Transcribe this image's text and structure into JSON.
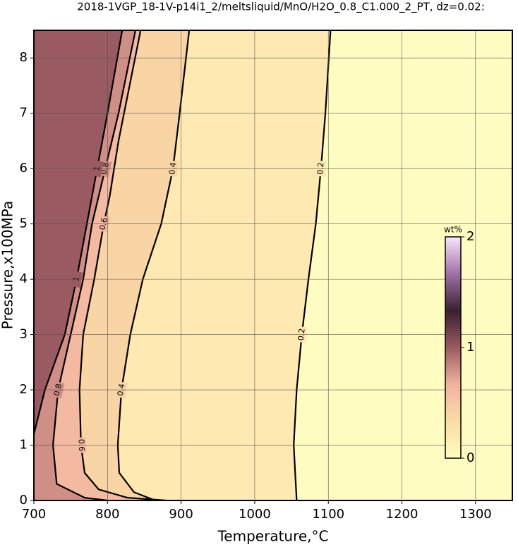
{
  "chart_data": {
    "type": "contour",
    "title": "2018-1VGP_18-1V-p14i1_2/meltsliquid/MnO/H2O_0.8_C1.000_2_PT, dz=0.02:",
    "x_label": "Temperature,°C",
    "y_label": "Pressure,x100MPa",
    "xlim": [
      700,
      1350
    ],
    "xticks": [
      700,
      800,
      900,
      1000,
      1100,
      1200,
      1300
    ],
    "ylim": [
      0,
      8.5
    ],
    "yticks": [
      0,
      1,
      2,
      3,
      4,
      5,
      6,
      7,
      8
    ],
    "grid": true,
    "colormap": [
      "#fffcc2",
      "#fbdca6",
      "#f2b2a0",
      "#9a5a62",
      "#3a2030",
      "#a070a8",
      "#fbe6fb"
    ],
    "contours": [
      {
        "level": 0.2,
        "x": [
          1057,
          1053,
          1057,
          1064,
          1073,
          1083,
          1090,
          1096,
          1103
        ],
        "y": [
          0,
          1,
          2,
          3,
          4,
          5,
          6,
          7,
          8.5
        ]
      },
      {
        "level": 0.4,
        "x": [
          865,
          836,
          816,
          814,
          819,
          831,
          848,
          873,
          889,
          898,
          911
        ],
        "y": [
          0,
          0.15,
          0.5,
          1,
          2,
          3,
          4,
          5,
          6,
          7,
          8.5
        ]
      },
      {
        "level": 0.6,
        "x": [
          880,
          827,
          788,
          769,
          764,
          762,
          767,
          782,
          795,
          803,
          815,
          845
        ],
        "y": [
          0,
          0.05,
          0.2,
          0.5,
          1,
          2,
          3,
          4,
          5,
          5.5,
          6.5,
          8.5
        ]
      },
      {
        "level": 0.8,
        "x": [
          800,
          769,
          731,
          726,
          733,
          750,
          767,
          779,
          797,
          815,
          838
        ],
        "y": [
          0,
          0.05,
          0.3,
          1,
          2,
          3,
          4,
          5,
          6,
          7,
          8.5
        ]
      },
      {
        "level": 1,
        "x": [
          700,
          715,
          742,
          758,
          772,
          786,
          800,
          820
        ],
        "y": [
          1.2,
          2,
          3,
          4,
          5,
          6,
          7,
          8.5
        ]
      }
    ],
    "colorbar": {
      "label": "wt%",
      "lim": [
        0,
        2
      ],
      "ticks": [
        0,
        1,
        2
      ]
    }
  }
}
